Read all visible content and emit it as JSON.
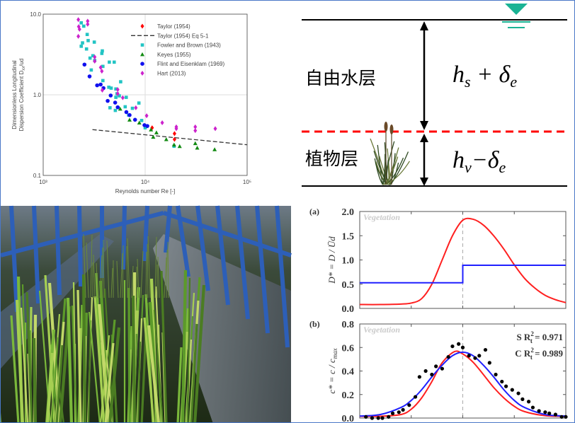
{
  "chart_data": [
    {
      "type": "scatter",
      "xlabel": "Reynolds number Re [-]",
      "ylabel_line1": "Dimensionless Longitudinal",
      "ylabel_line2": "Dispersion Coefficient D",
      "ylabel_sub": "xx",
      "ylabel_tail": "/ud",
      "x_scale": "log",
      "y_scale": "log",
      "xlim": [
        1000,
        100000
      ],
      "ylim": [
        0.1,
        10
      ],
      "x_ticks": [
        "10³",
        "10⁴",
        "10⁵"
      ],
      "y_ticks": [
        "0.1",
        "1.0",
        "10.0"
      ],
      "grid": true,
      "legend_position": "top-right",
      "series": [
        {
          "name": "Taylor (1954)",
          "marker": "diamond",
          "color": "#ff0000",
          "points": [
            [
              11700,
              0.39
            ],
            [
              19400,
              0.33
            ],
            [
              19400,
              0.28
            ]
          ]
        },
        {
          "name": "Taylor (1954) Eq 5-1",
          "marker": "dashed-line",
          "color": "#333333",
          "points": [
            [
              3040,
              0.37
            ],
            [
              100000,
              0.24
            ]
          ]
        },
        {
          "name": "Fowler and Brown (1943)",
          "marker": "square",
          "color": "#22c4c4",
          "points": [
            [
              2360,
              7.8
            ],
            [
              2500,
              7.1
            ],
            [
              2700,
              5.6
            ],
            [
              2760,
              4.7
            ],
            [
              2430,
              4.4
            ],
            [
              2360,
              4.0
            ],
            [
              2660,
              3.7
            ],
            [
              3170,
              4.5
            ],
            [
              3070,
              3.05
            ],
            [
              2880,
              2.85
            ],
            [
              3200,
              2.66
            ],
            [
              3760,
              3.26
            ],
            [
              3800,
              3.5
            ],
            [
              2960,
              2.03
            ],
            [
              3850,
              2.25
            ],
            [
              4450,
              2.54
            ],
            [
              4970,
              2.54
            ],
            [
              3850,
              1.5
            ],
            [
              4400,
              1.24
            ],
            [
              4640,
              1.21
            ],
            [
              5750,
              1.45
            ],
            [
              5160,
              1.18
            ],
            [
              5300,
              1.03
            ],
            [
              5160,
              0.93
            ],
            [
              4520,
              0.69
            ],
            [
              5100,
              0.64
            ],
            [
              5580,
              0.97
            ],
            [
              6370,
              0.71
            ],
            [
              6520,
              0.93
            ],
            [
              7500,
              0.68
            ],
            [
              8680,
              0.79
            ],
            [
              6890,
              0.56
            ],
            [
              9240,
              0.48
            ],
            [
              10000,
              0.39
            ],
            [
              19200,
              0.23
            ]
          ]
        },
        {
          "name": "Keyes (1955)",
          "marker": "triangle",
          "color": "#128a12",
          "points": [
            [
              5690,
              0.67
            ],
            [
              7030,
              0.49
            ],
            [
              8760,
              0.45
            ],
            [
              11400,
              0.37
            ],
            [
              12000,
              0.3
            ],
            [
              12900,
              0.34
            ],
            [
              16100,
              0.28
            ],
            [
              19200,
              0.24
            ],
            [
              21800,
              0.23
            ],
            [
              31000,
              0.25
            ],
            [
              32400,
              0.22
            ],
            [
              48000,
              0.21
            ]
          ]
        },
        {
          "name": "Flint and Eisenklam (1969)",
          "marker": "circle",
          "color": "#1010ee",
          "points": [
            [
              2540,
              2.37
            ],
            [
              2850,
              1.69
            ],
            [
              3380,
              1.31
            ],
            [
              3660,
              1.34
            ],
            [
              3900,
              1.21
            ],
            [
              4590,
              0.98
            ],
            [
              4290,
              0.84
            ],
            [
              5080,
              0.8
            ],
            [
              5380,
              0.7
            ],
            [
              6540,
              0.61
            ],
            [
              7030,
              0.56
            ],
            [
              7960,
              0.49
            ],
            [
              9840,
              0.42
            ],
            [
              10500,
              0.41
            ]
          ]
        },
        {
          "name": "Hart (2013)",
          "marker": "diamond",
          "color": "#cc22cc",
          "points": [
            [
              2210,
              8.55
            ],
            [
              2230,
              7.0
            ],
            [
              2270,
              6.5
            ],
            [
              2210,
              5.3
            ],
            [
              2730,
              8.2
            ],
            [
              2730,
              7.5
            ],
            [
              3200,
              2.94
            ],
            [
              3200,
              2.61
            ],
            [
              3660,
              2.18
            ],
            [
              3760,
              1.96
            ],
            [
              3800,
              1.14
            ],
            [
              5380,
              1.16
            ],
            [
              5380,
              1.03
            ],
            [
              6030,
              0.92
            ],
            [
              8100,
              0.69
            ],
            [
              10340,
              0.55
            ],
            [
              14700,
              0.45
            ],
            [
              20200,
              0.4
            ],
            [
              20200,
              0.38
            ],
            [
              31000,
              0.4
            ],
            [
              31000,
              0.36
            ],
            [
              48700,
              0.38
            ]
          ]
        }
      ]
    },
    {
      "type": "line",
      "panel_label": "(a)",
      "annotation": "Vegetation",
      "ylabel": "D* = D / Ūd",
      "xlim": [
        0,
        1
      ],
      "ylim": [
        0,
        2
      ],
      "y_ticks": [
        "0.0",
        "0.5",
        "1.0",
        "1.5",
        "2.0"
      ],
      "divider_x": 0.5,
      "series": [
        {
          "color": "#ff2020",
          "points": [
            [
              0,
              0.08
            ],
            [
              0.1,
              0.08
            ],
            [
              0.2,
              0.09
            ],
            [
              0.25,
              0.11
            ],
            [
              0.3,
              0.2
            ],
            [
              0.35,
              0.5
            ],
            [
              0.4,
              1.0
            ],
            [
              0.45,
              1.5
            ],
            [
              0.5,
              1.82
            ],
            [
              0.55,
              1.84
            ],
            [
              0.6,
              1.72
            ],
            [
              0.65,
              1.5
            ],
            [
              0.7,
              1.22
            ],
            [
              0.75,
              0.9
            ],
            [
              0.8,
              0.62
            ],
            [
              0.85,
              0.42
            ],
            [
              0.9,
              0.27
            ],
            [
              0.95,
              0.18
            ],
            [
              1.0,
              0.12
            ]
          ]
        },
        {
          "color": "#2020ff",
          "points": [
            [
              0,
              0.53
            ],
            [
              0.5,
              0.53
            ],
            [
              0.5,
              0.89
            ],
            [
              1,
              0.89
            ]
          ]
        }
      ]
    },
    {
      "type": "line",
      "panel_label": "(b)",
      "annotation": "Vegetation",
      "ylabel": "c* = c / c",
      "ylabel_sub": "max",
      "xlim": [
        0,
        1
      ],
      "ylim": [
        0,
        0.8
      ],
      "y_ticks": [
        "0.0",
        "0.2",
        "0.4",
        "0.6",
        "0.8"
      ],
      "divider_x": 0.5,
      "fit_labels": [
        {
          "prefix": "S R",
          "sup": "2",
          "sub": "t",
          "value": " = 0.971"
        },
        {
          "prefix": "C R",
          "sup": "2",
          "sub": "t",
          "value": " = 0.989"
        }
      ],
      "series": [
        {
          "color": "#ff2020",
          "points": [
            [
              0,
              0.015
            ],
            [
              0.1,
              0.015
            ],
            [
              0.2,
              0.03
            ],
            [
              0.25,
              0.075
            ],
            [
              0.3,
              0.17
            ],
            [
              0.35,
              0.31
            ],
            [
              0.4,
              0.47
            ],
            [
              0.46,
              0.565
            ],
            [
              0.5,
              0.545
            ],
            [
              0.55,
              0.475
            ],
            [
              0.6,
              0.37
            ],
            [
              0.65,
              0.26
            ],
            [
              0.7,
              0.17
            ],
            [
              0.75,
              0.1
            ],
            [
              0.8,
              0.055
            ],
            [
              0.9,
              0.02
            ],
            [
              1,
              0.015
            ]
          ]
        },
        {
          "color": "#2020ff",
          "points": [
            [
              0,
              0.017
            ],
            [
              0.1,
              0.03
            ],
            [
              0.2,
              0.09
            ],
            [
              0.25,
              0.15
            ],
            [
              0.3,
              0.24
            ],
            [
              0.35,
              0.35
            ],
            [
              0.4,
              0.45
            ],
            [
              0.45,
              0.53
            ],
            [
              0.5,
              0.56
            ],
            [
              0.55,
              0.53
            ],
            [
              0.6,
              0.45
            ],
            [
              0.65,
              0.35
            ],
            [
              0.7,
              0.24
            ],
            [
              0.75,
              0.15
            ],
            [
              0.8,
              0.09
            ],
            [
              0.9,
              0.03
            ],
            [
              1,
              0.017
            ]
          ]
        },
        {
          "color": "#000000",
          "marker": "dot",
          "points": [
            [
              0.03,
              0.01
            ],
            [
              0.06,
              0
            ],
            [
              0.09,
              0
            ],
            [
              0.11,
              0
            ],
            [
              0.14,
              0.01
            ],
            [
              0.16,
              0.04
            ],
            [
              0.19,
              0.05
            ],
            [
              0.21,
              0.07
            ],
            [
              0.24,
              0.11
            ],
            [
              0.27,
              0.18
            ],
            [
              0.29,
              0.35
            ],
            [
              0.32,
              0.4
            ],
            [
              0.35,
              0.37
            ],
            [
              0.37,
              0.44
            ],
            [
              0.4,
              0.42
            ],
            [
              0.43,
              0.52
            ],
            [
              0.45,
              0.61
            ],
            [
              0.48,
              0.63
            ],
            [
              0.5,
              0.6
            ],
            [
              0.53,
              0.53
            ],
            [
              0.56,
              0.51
            ],
            [
              0.58,
              0.53
            ],
            [
              0.61,
              0.58
            ],
            [
              0.63,
              0.47
            ],
            [
              0.66,
              0.37
            ],
            [
              0.69,
              0.31
            ],
            [
              0.71,
              0.27
            ],
            [
              0.74,
              0.24
            ],
            [
              0.77,
              0.21
            ],
            [
              0.79,
              0.16
            ],
            [
              0.82,
              0.14
            ],
            [
              0.84,
              0.09
            ],
            [
              0.87,
              0.06
            ],
            [
              0.9,
              0.05
            ],
            [
              0.92,
              0.04
            ],
            [
              0.95,
              0.03
            ],
            [
              0.98,
              0.01
            ],
            [
              1.0,
              0.01
            ]
          ]
        }
      ]
    }
  ],
  "diagram": {
    "free_layer_label": "自由水层",
    "free_layer_depth": {
      "base": "h",
      "sub": "s",
      "op": " + δ",
      "sub2": "e"
    },
    "vegetation_layer_label": "植物层",
    "vegetation_layer_depth": {
      "base": "h",
      "sub": "v",
      "op": "−δ",
      "sub2": "e"
    },
    "water_symbol_color": "#1ab394",
    "interface_color": "#ff0000"
  },
  "photo": {
    "subject": "vegetated-flume-photo"
  }
}
